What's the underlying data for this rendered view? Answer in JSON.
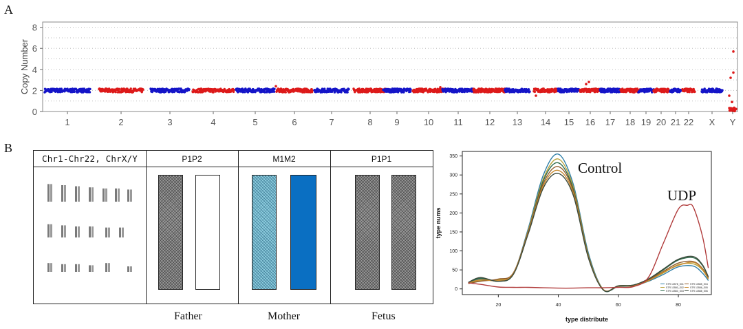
{
  "panel_a": {
    "letter": "A",
    "chart_data": {
      "type": "scatter",
      "ylabel": "Copy Number",
      "ylim": [
        0,
        8.5
      ],
      "yticks": [
        0,
        2,
        4,
        6,
        8
      ],
      "categories": [
        "1",
        "2",
        "3",
        "4",
        "5",
        "6",
        "7",
        "8",
        "9",
        "10",
        "11",
        "12",
        "13",
        "14",
        "15",
        "16",
        "17",
        "18",
        "19",
        "20",
        "21",
        "22",
        "X",
        "Y"
      ],
      "segments": [
        {
          "chr": "1",
          "color": "#1515c8",
          "level": 2.0
        },
        {
          "chr": "2",
          "color": "#dd1a1a",
          "level": 2.0
        },
        {
          "chr": "3",
          "color": "#1515c8",
          "level": 2.0
        },
        {
          "chr": "4",
          "color": "#dd1a1a",
          "level": 2.0
        },
        {
          "chr": "5",
          "color": "#1515c8",
          "level": 2.0
        },
        {
          "chr": "6",
          "color": "#dd1a1a",
          "level": 2.0
        },
        {
          "chr": "7",
          "color": "#1515c8",
          "level": 2.0
        },
        {
          "chr": "8",
          "color": "#dd1a1a",
          "level": 2.0
        },
        {
          "chr": "9",
          "color": "#1515c8",
          "level": 2.0
        },
        {
          "chr": "10",
          "color": "#dd1a1a",
          "level": 2.0
        },
        {
          "chr": "11",
          "color": "#1515c8",
          "level": 2.0
        },
        {
          "chr": "12",
          "color": "#dd1a1a",
          "level": 2.0
        },
        {
          "chr": "13",
          "color": "#1515c8",
          "level": 2.0
        },
        {
          "chr": "14",
          "color": "#dd1a1a",
          "level": 2.0
        },
        {
          "chr": "15",
          "color": "#1515c8",
          "level": 2.0
        },
        {
          "chr": "16",
          "color": "#dd1a1a",
          "level": 2.0
        },
        {
          "chr": "17",
          "color": "#1515c8",
          "level": 2.0
        },
        {
          "chr": "18",
          "color": "#dd1a1a",
          "level": 2.0
        },
        {
          "chr": "19",
          "color": "#1515c8",
          "level": 2.0
        },
        {
          "chr": "20",
          "color": "#dd1a1a",
          "level": 2.0
        },
        {
          "chr": "21",
          "color": "#1515c8",
          "level": 2.0
        },
        {
          "chr": "22",
          "color": "#dd1a1a",
          "level": 2.0
        },
        {
          "chr": "X",
          "color": "#1515c8",
          "level": 2.0
        },
        {
          "chr": "Y",
          "color": "#dd1a1a",
          "level": 0.2
        }
      ]
    }
  },
  "panel_b": {
    "letter": "B",
    "table": {
      "headers": [
        "Chr1-Chr22, ChrX/Y",
        "P1P2",
        "M1M2",
        "P1P1"
      ],
      "persons": [
        "Father",
        "Mother",
        "Fetus"
      ]
    },
    "chart_data": {
      "type": "line",
      "xlabel": "type distribute",
      "ylabel": "type nums",
      "xlim": [
        8,
        91
      ],
      "ylim": [
        -15,
        362
      ],
      "xticks": [
        20,
        40,
        60,
        80
      ],
      "yticks": [
        0,
        50,
        100,
        150,
        200,
        250,
        300,
        350
      ],
      "annotations": [
        "Control",
        "UDP"
      ],
      "legend": [
        "STR 13578_S01",
        "STR 13580_S02",
        "STR 13583_S03",
        "STR 13585_S04",
        "STR 13586_S05",
        "STR 13588_S06"
      ],
      "series": [
        {
          "color": "#2f7fa8",
          "points": [
            [
              10,
              14
            ],
            [
              14,
              26
            ],
            [
              20,
              22
            ],
            [
              25,
              40
            ],
            [
              30,
              160
            ],
            [
              35,
              300
            ],
            [
              40,
              355
            ],
            [
              45,
              275
            ],
            [
              50,
              95
            ],
            [
              55,
              -2
            ],
            [
              60,
              6
            ],
            [
              65,
              8
            ],
            [
              70,
              20
            ],
            [
              75,
              38
            ],
            [
              80,
              58
            ],
            [
              85,
              60
            ],
            [
              88,
              42
            ],
            [
              90,
              22
            ]
          ]
        },
        {
          "color": "#b7a13a",
          "points": [
            [
              10,
              15
            ],
            [
              14,
              22
            ],
            [
              20,
              24
            ],
            [
              25,
              40
            ],
            [
              30,
              155
            ],
            [
              35,
              290
            ],
            [
              40,
              342
            ],
            [
              45,
              268
            ],
            [
              50,
              90
            ],
            [
              55,
              -2
            ],
            [
              60,
              7
            ],
            [
              65,
              9
            ],
            [
              70,
              22
            ],
            [
              75,
              42
            ],
            [
              80,
              64
            ],
            [
              85,
              66
            ],
            [
              88,
              50
            ],
            [
              90,
              26
            ]
          ]
        },
        {
          "color": "#2e6b4a",
          "points": [
            [
              10,
              16
            ],
            [
              14,
              28
            ],
            [
              20,
              20
            ],
            [
              25,
              38
            ],
            [
              30,
              150
            ],
            [
              35,
              285
            ],
            [
              40,
              332
            ],
            [
              45,
              262
            ],
            [
              50,
              88
            ],
            [
              55,
              -3
            ],
            [
              60,
              8
            ],
            [
              65,
              10
            ],
            [
              70,
              25
            ],
            [
              75,
              50
            ],
            [
              80,
              76
            ],
            [
              85,
              82
            ],
            [
              88,
              62
            ],
            [
              90,
              30
            ]
          ]
        },
        {
          "color": "#8f5a2a",
          "points": [
            [
              10,
              14
            ],
            [
              14,
              20
            ],
            [
              20,
              26
            ],
            [
              25,
              42
            ],
            [
              30,
              152
            ],
            [
              35,
              278
            ],
            [
              40,
              322
            ],
            [
              45,
              258
            ],
            [
              50,
              86
            ],
            [
              55,
              -2
            ],
            [
              60,
              8
            ],
            [
              65,
              8
            ],
            [
              70,
              24
            ],
            [
              75,
              46
            ],
            [
              80,
              68
            ],
            [
              85,
              72
            ],
            [
              88,
              54
            ],
            [
              90,
              28
            ]
          ]
        },
        {
          "color": "#c98a2e",
          "points": [
            [
              10,
              15
            ],
            [
              14,
              24
            ],
            [
              20,
              22
            ],
            [
              25,
              40
            ],
            [
              30,
              148
            ],
            [
              35,
              272
            ],
            [
              40,
              312
            ],
            [
              45,
              252
            ],
            [
              50,
              84
            ],
            [
              55,
              -2
            ],
            [
              60,
              7
            ],
            [
              65,
              9
            ],
            [
              70,
              21
            ],
            [
              75,
              44
            ],
            [
              80,
              62
            ],
            [
              85,
              70
            ],
            [
              88,
              52
            ],
            [
              90,
              26
            ]
          ]
        },
        {
          "color": "#3c4a3c",
          "points": [
            [
              10,
              17
            ],
            [
              14,
              30
            ],
            [
              20,
              20
            ],
            [
              25,
              38
            ],
            [
              30,
              146
            ],
            [
              35,
              266
            ],
            [
              40,
              304
            ],
            [
              45,
              246
            ],
            [
              50,
              82
            ],
            [
              55,
              -3
            ],
            [
              60,
              8
            ],
            [
              65,
              10
            ],
            [
              70,
              26
            ],
            [
              75,
              52
            ],
            [
              80,
              78
            ],
            [
              85,
              85
            ],
            [
              88,
              64
            ],
            [
              90,
              32
            ]
          ]
        },
        {
          "color": "#b03a3a",
          "points": [
            [
              10,
              16
            ],
            [
              14,
              12
            ],
            [
              20,
              5
            ],
            [
              25,
              4
            ],
            [
              30,
              4
            ],
            [
              35,
              3
            ],
            [
              40,
              2
            ],
            [
              45,
              2
            ],
            [
              50,
              3
            ],
            [
              55,
              3
            ],
            [
              60,
              4
            ],
            [
              65,
              6
            ],
            [
              70,
              30
            ],
            [
              75,
              120
            ],
            [
              80,
              210
            ],
            [
              83,
              220
            ],
            [
              85,
              215
            ],
            [
              88,
              140
            ],
            [
              90,
              55
            ]
          ]
        }
      ]
    }
  }
}
